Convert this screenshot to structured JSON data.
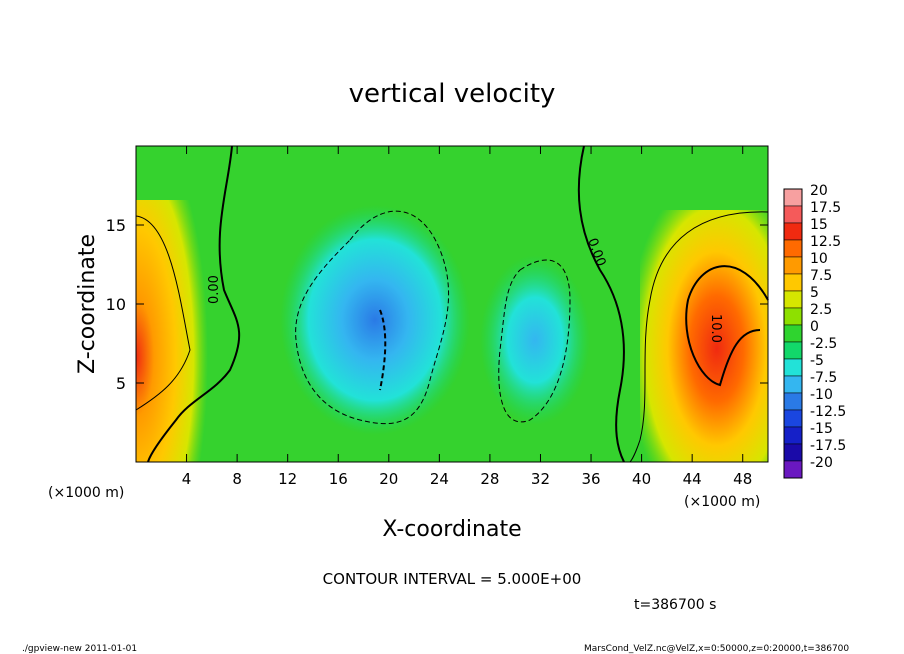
{
  "chart_data": {
    "type": "heatmap",
    "title": "vertical velocity",
    "xlabel": "X-coordinate",
    "ylabel": "Z-coordinate",
    "x_unit_left": "(×1000 m)",
    "x_unit_right": "(×1000 m)",
    "xlim": [
      0,
      50
    ],
    "ylim": [
      0,
      20
    ],
    "x_ticks": [
      "4",
      "8",
      "12",
      "16",
      "20",
      "24",
      "28",
      "32",
      "36",
      "40",
      "44",
      "48"
    ],
    "y_ticks": [
      "5",
      "10",
      "15"
    ],
    "colorbar": {
      "levels": [
        "20",
        "17.5",
        "15",
        "12.5",
        "10",
        "7.5",
        "5",
        "2.5",
        "0",
        "-2.5",
        "-5",
        "-7.5",
        "-10",
        "-12.5",
        "-15",
        "-17.5",
        "-20"
      ],
      "colors": [
        "#f7a0a0",
        "#f55a5a",
        "#f02a10",
        "#ff6a00",
        "#ff9a00",
        "#ffc800",
        "#d6e600",
        "#8ee000",
        "#2fd42f",
        "#12d86a",
        "#22e2d8",
        "#34b6f0",
        "#2a7ae6",
        "#1a46e0",
        "#1520c8",
        "#1a0aa8",
        "#6a18c0"
      ]
    },
    "contour_labels": [
      "0.00",
      "0.00",
      "10.0"
    ],
    "contour_interval": "CONTOUR INTERVAL = 5.000E+00",
    "time": "t=386700 s",
    "footer_left": "./gpview-new   2011-01-01",
    "footer_right": "MarsCond_VelZ.nc@VelZ,x=0:50000,z=0:20000,t=386700"
  }
}
